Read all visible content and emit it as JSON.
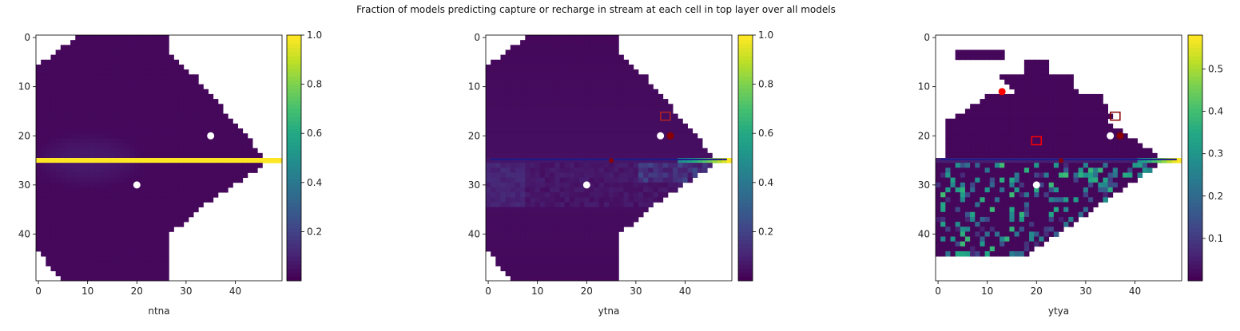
{
  "figure": {
    "title": "Fraction of models predicting capture or recharge in stream at each cell in top layer over all models"
  },
  "colormap": "viridis",
  "chart_data": [
    {
      "type": "heatmap",
      "xlabel": "ntna",
      "ylabel": "",
      "xlim": [
        0,
        49
      ],
      "ylim": [
        49,
        0
      ],
      "xticks": [
        0,
        10,
        20,
        30,
        40
      ],
      "yticks": [
        0,
        10,
        20,
        30,
        40
      ],
      "colorbar": {
        "min": 0.0,
        "max": 1.0,
        "ticks": [
          0.2,
          0.4,
          0.6,
          0.8,
          1.0
        ],
        "tick_labels": [
          "0.2",
          "0.4",
          "0.6",
          "0.8",
          "1.0"
        ]
      },
      "stream_row": 25,
      "stream_value": 1.0,
      "background_value": 0.03,
      "points": [
        {
          "x": 35,
          "y": 20,
          "marker": "circle",
          "color": "#ffffff"
        },
        {
          "x": 20,
          "y": 30,
          "marker": "circle",
          "color": "#ffffff"
        }
      ]
    },
    {
      "type": "heatmap",
      "xlabel": "ytna",
      "ylabel": "",
      "xlim": [
        0,
        49
      ],
      "ylim": [
        49,
        0
      ],
      "xticks": [
        0,
        10,
        20,
        30,
        40
      ],
      "yticks": [
        0,
        10,
        20,
        30,
        40
      ],
      "colorbar": {
        "min": 0.0,
        "max": 1.0,
        "ticks": [
          0.2,
          0.4,
          0.6,
          0.8,
          1.0
        ],
        "tick_labels": [
          "0.2",
          "0.4",
          "0.6",
          "0.8",
          "1.0"
        ]
      },
      "stream_row": 25,
      "stream_value": 0.05,
      "background_value": 0.02,
      "points": [
        {
          "x": 35,
          "y": 20,
          "marker": "circle",
          "color": "#ffffff"
        },
        {
          "x": 20,
          "y": 30,
          "marker": "circle",
          "color": "#ffffff"
        },
        {
          "x": 37,
          "y": 20,
          "marker": "circle",
          "color": "#8b0000"
        },
        {
          "x": 25,
          "y": 25,
          "marker": "circle-small",
          "color": "#8b0000"
        },
        {
          "x": 36,
          "y": 16,
          "marker": "square",
          "color": "#b22222"
        }
      ]
    },
    {
      "type": "heatmap",
      "xlabel": "ytya",
      "ylabel": "",
      "xlim": [
        0,
        49
      ],
      "ylim": [
        49,
        0
      ],
      "xticks": [
        0,
        10,
        20,
        30,
        40
      ],
      "yticks": [
        0,
        10,
        20,
        30,
        40
      ],
      "colorbar": {
        "min": 0.0,
        "max": 0.58,
        "ticks": [
          0.1,
          0.2,
          0.3,
          0.4,
          0.5
        ],
        "tick_labels": [
          "0.1",
          "0.2",
          "0.3",
          "0.4",
          "0.5"
        ]
      },
      "stream_row": 25,
      "stream_value": 0.05,
      "background_value": 0.01,
      "points": [
        {
          "x": 35,
          "y": 20,
          "marker": "circle",
          "color": "#ffffff"
        },
        {
          "x": 20,
          "y": 30,
          "marker": "circle",
          "color": "#ffffff"
        },
        {
          "x": 13,
          "y": 11,
          "marker": "circle",
          "color": "#ff0000"
        },
        {
          "x": 37,
          "y": 20,
          "marker": "circle",
          "color": "#8b0000"
        },
        {
          "x": 25,
          "y": 25,
          "marker": "circle-small",
          "color": "#8b0000"
        },
        {
          "x": 36,
          "y": 16,
          "marker": "square",
          "color": "#8b0000"
        },
        {
          "x": 20,
          "y": 21,
          "marker": "square",
          "color": "#ff0000"
        }
      ]
    }
  ]
}
